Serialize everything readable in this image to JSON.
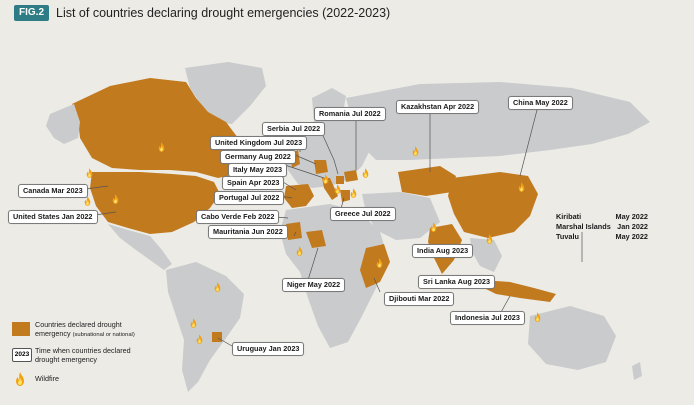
{
  "header": {
    "badge": "FIG.2",
    "title": "List of countries declaring drought emergencies (2022-2023)"
  },
  "colors": {
    "land": "#c9cbcc",
    "drought": "#c27a1f",
    "ocean": "#ecebe6",
    "badge": "#2e7d86",
    "flame_outer": "#f3a20f",
    "flame_inner": "#ffe16a"
  },
  "callouts": {
    "canada": "Canada  Mar 2023",
    "united_states": "United States  Jan 2022",
    "united_kingdom": "United Kingdom  Jul 2023",
    "serbia": "Serbia  Jul 2022",
    "romania": "Romania  Jul 2022",
    "germany": "Germany  Aug 2022",
    "italy": "Italy  May 2023",
    "spain": "Spain  Apr 2023",
    "portugal": "Portugal  Jul 2022",
    "cabo_verde": "Cabo Verde  Feb 2022",
    "mauritania": "Mauritania  Jun 2022",
    "greece": "Greece  Jul 2022",
    "kazakhstan": "Kazakhstan  Apr 2022",
    "china": "China  May 2022",
    "india": "India  Aug 2023",
    "sri_lanka": "Sri Lanka  Aug 2023",
    "djibouti": "Djibouti  Mar 2022",
    "niger": "Niger  May 2022",
    "indonesia": "Indonesia  Jul 2023",
    "uruguay": "Uruguay  Jan 2023",
    "pacific": [
      {
        "country": "Kiribati",
        "date": "May 2022"
      },
      {
        "country": "Marshal Islands",
        "date": "Jan 2022"
      },
      {
        "country": "Tuvalu",
        "date": "May 2022"
      }
    ]
  },
  "legend": {
    "drought_label": "Countries declared drought",
    "drought_label_2": "emergency",
    "drought_sub": "(subnational or national)",
    "year_badge": "2023",
    "year_label": "Time when countries declared",
    "year_label_2": "drought emergency",
    "wildfire_label": "Wildfire"
  }
}
